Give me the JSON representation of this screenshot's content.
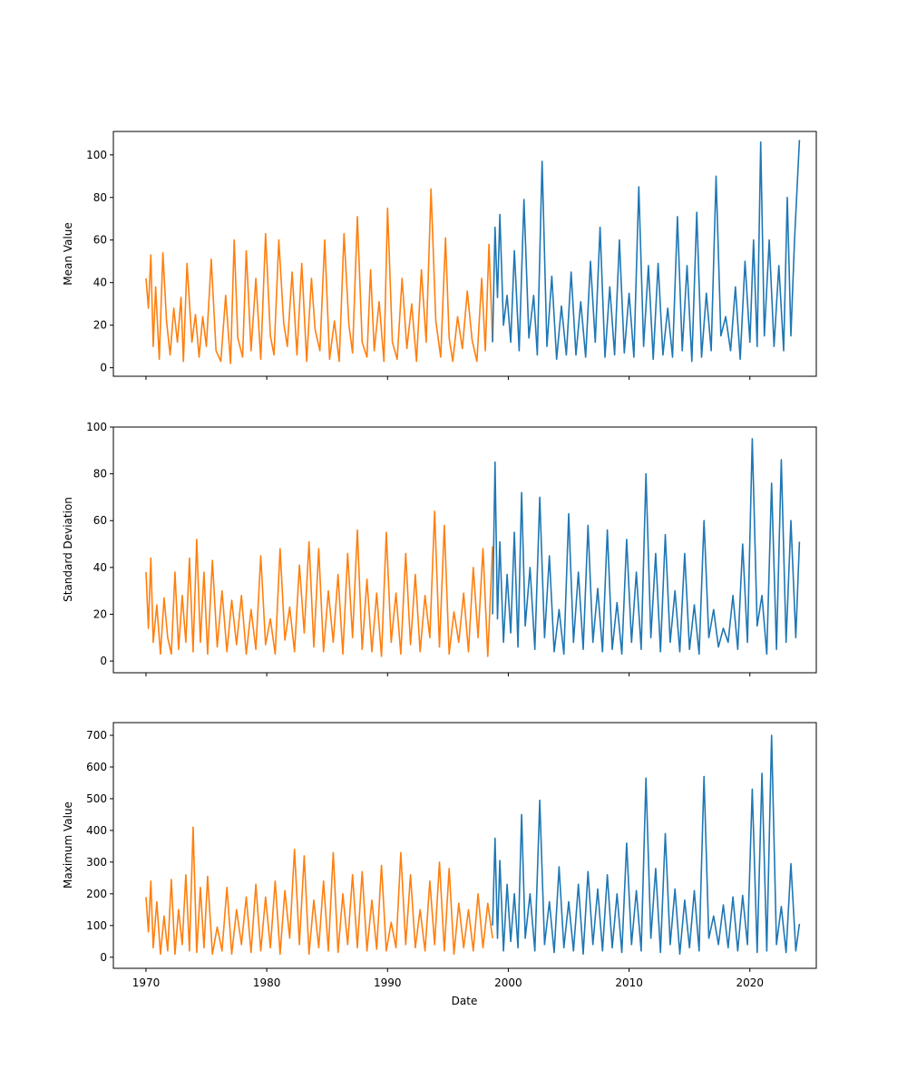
{
  "colors": {
    "series_1970_1998": "#ff7f0e",
    "series_1998_2024": "#1f77b4",
    "frame": "#000000"
  },
  "xaxis": {
    "label": "Date",
    "ticks": [
      "1970",
      "1980",
      "1990",
      "2000",
      "2010",
      "2020"
    ]
  },
  "chart_data": [
    {
      "type": "line",
      "ylabel": "Mean Value",
      "xlim": [
        1967.3,
        2025.5
      ],
      "ylim": [
        -4,
        111
      ],
      "yticks": [
        0,
        20,
        40,
        60,
        80,
        100
      ],
      "series": [
        {
          "color": "#ff7f0e",
          "x": [
            1970,
            1970.2,
            1970.4,
            1970.6,
            1970.8,
            1971.1,
            1971.4,
            1971.7,
            1972,
            1972.3,
            1972.6,
            1972.9,
            1973.1,
            1973.4,
            1973.8,
            1974.1,
            1974.4,
            1974.7,
            1975,
            1975.4,
            1975.8,
            1976.2,
            1976.6,
            1977,
            1977.3,
            1977.6,
            1978,
            1978.3,
            1978.7,
            1979.1,
            1979.5,
            1979.9,
            1980.3,
            1980.6,
            1981,
            1981.4,
            1981.7,
            1982.1,
            1982.5,
            1982.9,
            1983.3,
            1983.7,
            1984,
            1984.4,
            1984.8,
            1985.2,
            1985.6,
            1986,
            1986.4,
            1986.8,
            1987.1,
            1987.5,
            1987.9,
            1988.3,
            1988.6,
            1988.9,
            1989.3,
            1989.7,
            1990,
            1990.4,
            1990.8,
            1991.2,
            1991.6,
            1992,
            1992.4,
            1992.8,
            1993.2,
            1993.6,
            1994,
            1994.4,
            1994.8,
            1995.1,
            1995.4,
            1995.8,
            1996.2,
            1996.6,
            1997,
            1997.4,
            1997.8,
            1998.1,
            1998.4,
            1998.7
          ],
          "y": [
            42,
            28,
            53,
            10,
            38,
            4,
            54,
            22,
            6,
            28,
            12,
            33,
            3,
            49,
            12,
            25,
            5,
            24,
            10,
            51,
            8,
            3,
            34,
            2,
            60,
            14,
            5,
            55,
            8,
            42,
            4,
            63,
            15,
            6,
            60,
            21,
            10,
            45,
            6,
            49,
            3,
            42,
            18,
            8,
            60,
            4,
            22,
            3,
            63,
            20,
            7,
            71,
            12,
            5,
            46,
            8,
            31,
            3,
            75,
            12,
            4,
            42,
            9,
            30,
            3,
            46,
            12,
            84,
            22,
            5,
            61,
            14,
            3,
            24,
            9,
            36,
            13,
            3,
            42,
            8,
            58,
            12
          ]
        },
        {
          "color": "#1f77b4",
          "x": [
            1998.7,
            1998.9,
            1999.1,
            1999.3,
            1999.6,
            1999.9,
            2000.2,
            2000.5,
            2000.9,
            2001.3,
            2001.7,
            2002.1,
            2002.4,
            2002.8,
            2003.2,
            2003.6,
            2004,
            2004.4,
            2004.8,
            2005.2,
            2005.6,
            2006,
            2006.4,
            2006.8,
            2007.2,
            2007.6,
            2008,
            2008.4,
            2008.8,
            2009.2,
            2009.6,
            2010,
            2010.4,
            2010.8,
            2011.2,
            2011.6,
            2012,
            2012.4,
            2012.8,
            2013.2,
            2013.6,
            2014,
            2014.4,
            2014.8,
            2015.2,
            2015.6,
            2016,
            2016.4,
            2016.8,
            2017.2,
            2017.6,
            2018,
            2018.4,
            2018.8,
            2019.2,
            2019.6,
            2020,
            2020.3,
            2020.6,
            2020.9,
            2021.2,
            2021.6,
            2022,
            2022.4,
            2022.8,
            2023.1,
            2023.4,
            2023.7,
            2024.1
          ],
          "y": [
            12,
            66,
            33,
            72,
            20,
            34,
            12,
            55,
            8,
            79,
            14,
            34,
            6,
            97,
            10,
            43,
            4,
            29,
            6,
            45,
            6,
            31,
            5,
            50,
            12,
            66,
            5,
            38,
            6,
            60,
            7,
            35,
            5,
            85,
            10,
            48,
            4,
            49,
            6,
            28,
            5,
            71,
            8,
            48,
            3,
            73,
            5,
            35,
            8,
            90,
            15,
            24,
            8,
            38,
            4,
            50,
            12,
            60,
            10,
            106,
            15,
            60,
            10,
            48,
            8,
            80,
            15,
            60,
            107
          ]
        }
      ]
    },
    {
      "type": "line",
      "ylabel": "Standard Deviation",
      "xlim": [
        1967.3,
        2025.5
      ],
      "ylim": [
        -5,
        100
      ],
      "yticks": [
        0,
        20,
        40,
        60,
        80,
        100
      ],
      "series": [
        {
          "color": "#ff7f0e",
          "x": [
            1970,
            1970.2,
            1970.4,
            1970.6,
            1970.9,
            1971.2,
            1971.5,
            1971.8,
            1972.1,
            1972.4,
            1972.7,
            1973,
            1973.3,
            1973.6,
            1973.9,
            1974.2,
            1974.5,
            1974.8,
            1975.1,
            1975.5,
            1975.9,
            1976.3,
            1976.7,
            1977.1,
            1977.5,
            1977.9,
            1978.3,
            1978.7,
            1979.1,
            1979.5,
            1979.9,
            1980.3,
            1980.7,
            1981.1,
            1981.5,
            1981.9,
            1982.3,
            1982.7,
            1983.1,
            1983.5,
            1983.9,
            1984.3,
            1984.7,
            1985.1,
            1985.5,
            1985.9,
            1986.3,
            1986.7,
            1987.1,
            1987.5,
            1987.9,
            1988.3,
            1988.7,
            1989.1,
            1989.5,
            1989.9,
            1990.3,
            1990.7,
            1991.1,
            1991.5,
            1991.9,
            1992.3,
            1992.7,
            1993.1,
            1993.5,
            1993.9,
            1994.3,
            1994.7,
            1995.1,
            1995.5,
            1995.9,
            1996.3,
            1996.7,
            1997.1,
            1997.5,
            1997.9,
            1998.3,
            1998.7
          ],
          "y": [
            38,
            14,
            44,
            8,
            24,
            3,
            27,
            10,
            3,
            38,
            5,
            28,
            8,
            44,
            4,
            52,
            8,
            38,
            3,
            43,
            6,
            30,
            4,
            26,
            7,
            28,
            3,
            22,
            5,
            45,
            7,
            18,
            3,
            48,
            9,
            23,
            4,
            41,
            12,
            51,
            6,
            48,
            4,
            30,
            8,
            37,
            3,
            46,
            10,
            56,
            5,
            35,
            4,
            29,
            2,
            55,
            8,
            29,
            3,
            46,
            7,
            37,
            4,
            28,
            10,
            64,
            6,
            58,
            3,
            21,
            8,
            29,
            4,
            40,
            10,
            48,
            2,
            49
          ]
        },
        {
          "color": "#1f77b4",
          "x": [
            1998.7,
            1998.9,
            1999.1,
            1999.3,
            1999.6,
            1999.9,
            2000.2,
            2000.5,
            2000.8,
            2001.1,
            2001.4,
            2001.8,
            2002.2,
            2002.6,
            2003,
            2003.4,
            2003.8,
            2004.2,
            2004.6,
            2005,
            2005.4,
            2005.8,
            2006.2,
            2006.6,
            2007,
            2007.4,
            2007.8,
            2008.2,
            2008.6,
            2009,
            2009.4,
            2009.8,
            2010.2,
            2010.6,
            2011,
            2011.4,
            2011.8,
            2012.2,
            2012.6,
            2013,
            2013.4,
            2013.8,
            2014.2,
            2014.6,
            2015,
            2015.4,
            2015.8,
            2016.2,
            2016.6,
            2017,
            2017.4,
            2017.8,
            2018.2,
            2018.6,
            2019,
            2019.4,
            2019.8,
            2020.2,
            2020.6,
            2021,
            2021.4,
            2021.8,
            2022.2,
            2022.6,
            2023,
            2023.4,
            2023.8,
            2024.1
          ],
          "y": [
            20,
            85,
            18,
            51,
            8,
            37,
            12,
            55,
            6,
            72,
            15,
            40,
            5,
            70,
            10,
            45,
            4,
            22,
            3,
            63,
            8,
            38,
            5,
            58,
            8,
            31,
            4,
            56,
            5,
            25,
            3,
            52,
            8,
            38,
            5,
            80,
            10,
            46,
            4,
            54,
            8,
            30,
            4,
            46,
            5,
            24,
            3,
            60,
            10,
            22,
            6,
            14,
            8,
            28,
            5,
            50,
            8,
            95,
            15,
            28,
            3,
            76,
            5,
            86,
            8,
            60,
            10,
            51
          ]
        }
      ]
    },
    {
      "type": "line",
      "ylabel": "Maximum Value",
      "xlim": [
        1967.3,
        2025.5
      ],
      "ylim": [
        -35,
        740
      ],
      "yticks": [
        0,
        100,
        200,
        300,
        400,
        500,
        600,
        700
      ],
      "series": [
        {
          "color": "#ff7f0e",
          "x": [
            1970,
            1970.2,
            1970.4,
            1970.6,
            1970.9,
            1971.2,
            1971.5,
            1971.8,
            1972.1,
            1972.4,
            1972.7,
            1973,
            1973.3,
            1973.6,
            1973.9,
            1974.2,
            1974.5,
            1974.8,
            1975.1,
            1975.5,
            1975.9,
            1976.3,
            1976.7,
            1977.1,
            1977.5,
            1977.9,
            1978.3,
            1978.7,
            1979.1,
            1979.5,
            1979.9,
            1980.3,
            1980.7,
            1981.1,
            1981.5,
            1981.9,
            1982.3,
            1982.7,
            1983.1,
            1983.5,
            1983.9,
            1984.3,
            1984.7,
            1985.1,
            1985.5,
            1985.9,
            1986.3,
            1986.7,
            1987.1,
            1987.5,
            1987.9,
            1988.3,
            1988.7,
            1989.1,
            1989.5,
            1989.9,
            1990.3,
            1990.7,
            1991.1,
            1991.5,
            1991.9,
            1992.3,
            1992.7,
            1993.1,
            1993.5,
            1993.9,
            1994.3,
            1994.7,
            1995.1,
            1995.5,
            1995.9,
            1996.3,
            1996.7,
            1997.1,
            1997.5,
            1997.9,
            1998.3,
            1998.7
          ],
          "y": [
            190,
            80,
            240,
            30,
            175,
            10,
            130,
            20,
            245,
            10,
            150,
            40,
            260,
            20,
            410,
            15,
            220,
            30,
            255,
            10,
            95,
            20,
            220,
            10,
            150,
            40,
            190,
            15,
            230,
            20,
            190,
            30,
            240,
            10,
            210,
            60,
            340,
            40,
            320,
            10,
            180,
            30,
            240,
            20,
            330,
            15,
            200,
            40,
            260,
            30,
            270,
            20,
            180,
            25,
            290,
            20,
            110,
            30,
            330,
            40,
            260,
            30,
            150,
            20,
            240,
            40,
            300,
            20,
            280,
            10,
            170,
            30,
            150,
            20,
            200,
            30,
            170,
            60
          ]
        },
        {
          "color": "#1f77b4",
          "x": [
            1998.7,
            1998.9,
            1999.1,
            1999.3,
            1999.6,
            1999.9,
            2000.2,
            2000.5,
            2000.8,
            2001.1,
            2001.4,
            2001.8,
            2002.2,
            2002.6,
            2003,
            2003.4,
            2003.8,
            2004.2,
            2004.6,
            2005,
            2005.4,
            2005.8,
            2006.2,
            2006.6,
            2007,
            2007.4,
            2007.8,
            2008.2,
            2008.6,
            2009,
            2009.4,
            2009.8,
            2010.2,
            2010.6,
            2011,
            2011.4,
            2011.8,
            2012.2,
            2012.6,
            2013,
            2013.4,
            2013.8,
            2014.2,
            2014.6,
            2015,
            2015.4,
            2015.8,
            2016.2,
            2016.6,
            2017,
            2017.4,
            2017.8,
            2018.2,
            2018.6,
            2019,
            2019.4,
            2019.8,
            2020.2,
            2020.6,
            2021,
            2021.4,
            2021.8,
            2022.2,
            2022.6,
            2023,
            2023.4,
            2023.8,
            2024.1
          ],
          "y": [
            100,
            375,
            60,
            305,
            20,
            230,
            50,
            200,
            30,
            450,
            60,
            200,
            20,
            495,
            40,
            175,
            15,
            285,
            30,
            175,
            20,
            230,
            10,
            270,
            40,
            215,
            20,
            260,
            30,
            200,
            15,
            360,
            40,
            210,
            20,
            565,
            60,
            280,
            15,
            390,
            40,
            215,
            10,
            180,
            30,
            210,
            20,
            570,
            60,
            130,
            40,
            165,
            30,
            190,
            20,
            195,
            40,
            530,
            15,
            580,
            20,
            700,
            40,
            160,
            15,
            295,
            20,
            105
          ]
        }
      ]
    }
  ]
}
